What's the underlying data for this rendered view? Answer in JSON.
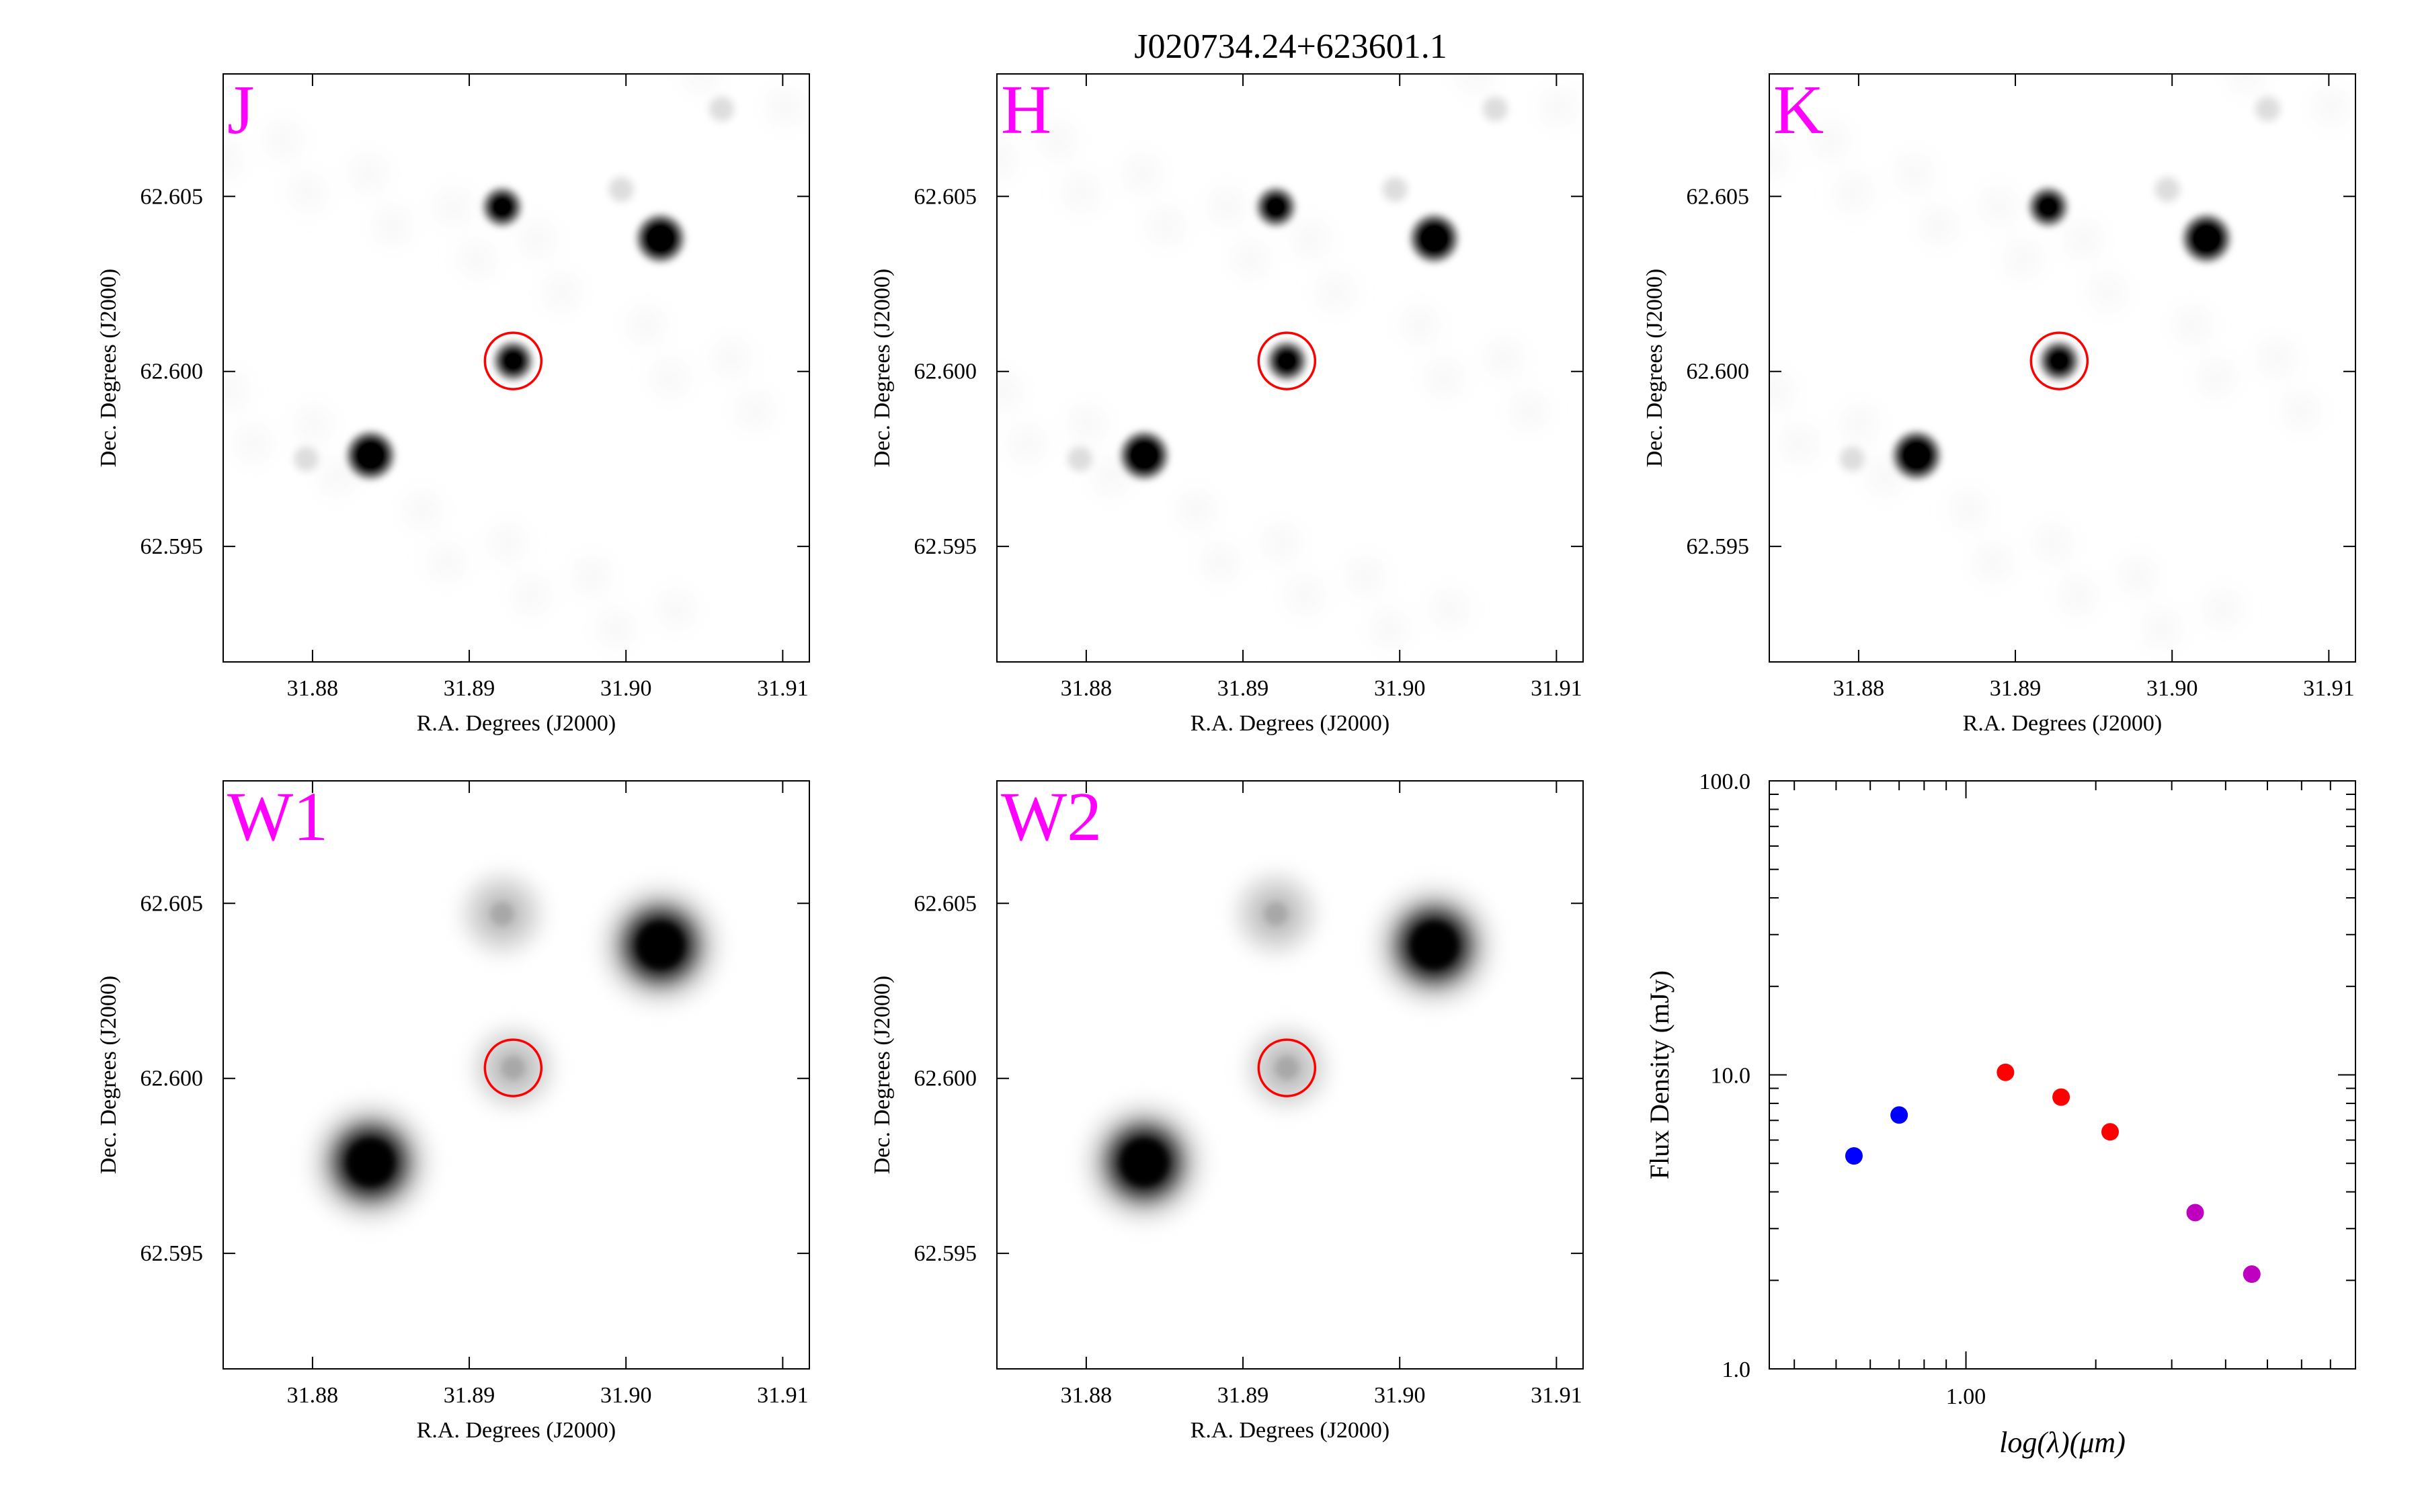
{
  "figure": {
    "title": "J020734.24+623601.1"
  },
  "cutouts": {
    "ra_label": "R.A. Degrees (J2000)",
    "dec_label": "Dec. Degrees (J2000)",
    "ra_range": [
      31.8743,
      31.9117
    ],
    "dec_range": [
      62.5917,
      62.6085
    ],
    "ra_ticks": [
      "31.88",
      "31.89",
      "31.90",
      "31.91"
    ],
    "dec_ticks": [
      "62.595",
      "62.600",
      "62.605"
    ],
    "target": {
      "ra": 31.8928,
      "dec": 62.6003
    },
    "band_color": "#ff00ff",
    "circle_color": "#ff0000",
    "panels": [
      {
        "band": "J",
        "type": "2mass"
      },
      {
        "band": "H",
        "type": "2mass"
      },
      {
        "band": "K",
        "type": "2mass"
      },
      {
        "band": "W1",
        "type": "wise"
      },
      {
        "band": "W2",
        "type": "wise"
      }
    ],
    "sources": [
      {
        "ra": 31.8921,
        "dec": 62.6047,
        "mag": 0.9
      },
      {
        "ra": 31.9022,
        "dec": 62.6038,
        "mag": 1.0
      },
      {
        "ra": 31.8928,
        "dec": 62.6003,
        "mag": 0.85
      },
      {
        "ra": 31.8837,
        "dec": 62.5976,
        "mag": 1.0
      },
      {
        "ra": 31.8796,
        "dec": 62.5975,
        "mag": 0.12
      },
      {
        "ra": 31.8997,
        "dec": 62.6052,
        "mag": 0.08
      },
      {
        "ra": 31.9061,
        "dec": 62.6075,
        "mag": 0.08
      }
    ]
  },
  "chart_data": {
    "type": "scatter",
    "title": "",
    "xlabel": "log(λ)(μm)",
    "ylabel": "Flux Density (mJy)",
    "xscale": "log",
    "yscale": "log",
    "xlim": [
      0.35,
      8.0
    ],
    "ylim": [
      1.0,
      100.0
    ],
    "x_tick_labels": [
      "1.00"
    ],
    "y_tick_labels": [
      "1.0",
      "10.0",
      "100.0"
    ],
    "series": [
      {
        "color": "#0000ff",
        "x": [
          0.55,
          0.7
        ],
        "y": [
          5.3,
          7.3
        ]
      },
      {
        "color": "#ff0000",
        "x": [
          1.235,
          1.662,
          2.159
        ],
        "y": [
          10.2,
          8.4,
          6.4
        ]
      },
      {
        "color": "#c000c0",
        "x": [
          3.4,
          4.6
        ],
        "y": [
          3.4,
          2.1
        ]
      }
    ]
  }
}
